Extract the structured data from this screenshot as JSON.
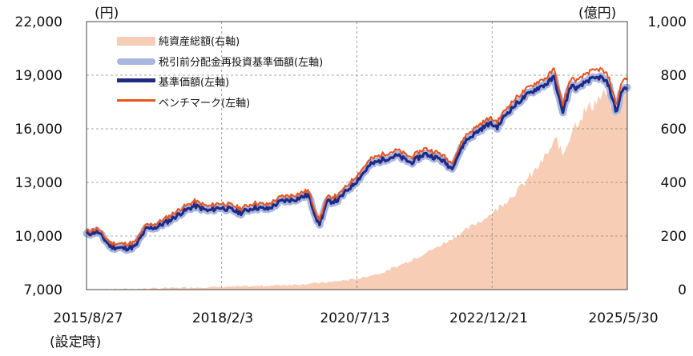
{
  "chart_data": {
    "type": "line",
    "units": {
      "left": "(円)",
      "right": "(億円)"
    },
    "y_left": {
      "ylim": [
        7000,
        22000
      ],
      "ticks": [
        "7,000",
        "10,000",
        "13,000",
        "16,000",
        "19,000",
        "22,000"
      ],
      "tick_values": [
        7000,
        10000,
        13000,
        16000,
        19000,
        22000
      ]
    },
    "y_right": {
      "ylim": [
        0,
        1000
      ],
      "ticks": [
        "0",
        "200",
        "400",
        "600",
        "800",
        "1,000"
      ],
      "tick_values": [
        0,
        200,
        400,
        600,
        800,
        1000
      ]
    },
    "x_ticks": [
      "2015/8/27",
      "2018/2/3",
      "2020/7/13",
      "2022/12/21",
      "2025/5/30"
    ],
    "x_tick_note": "(設定時)",
    "legend": [
      "純資産総額(右軸)",
      "税引前分配金再投資基準価額(左軸)",
      "基準価額(左軸)",
      "ベンチマーク(左軸)"
    ],
    "colors": {
      "assets": "#f7cdb5",
      "reinvested": "#a9b6df",
      "nav": "#1f2a85",
      "benchmark": "#e8541e",
      "grid": "#8a8a8a",
      "axis": "#444444"
    },
    "series": [
      {
        "name": "基準価額(左軸)",
        "axis": "left",
        "x": [
          0,
          0.02,
          0.045,
          0.07,
          0.09,
          0.11,
          0.13,
          0.155,
          0.175,
          0.2,
          0.225,
          0.245,
          0.265,
          0.285,
          0.31,
          0.335,
          0.36,
          0.385,
          0.41,
          0.43,
          0.445,
          0.465,
          0.48,
          0.5,
          0.525,
          0.55,
          0.575,
          0.6,
          0.625,
          0.655,
          0.675,
          0.7,
          0.725,
          0.745,
          0.76,
          0.775,
          0.795,
          0.815,
          0.835,
          0.85,
          0.865,
          0.88,
          0.895,
          0.91,
          0.925,
          0.94,
          0.95,
          0.965,
          0.98,
          0.99,
          1
        ],
        "values": [
          10100,
          10250,
          9400,
          9300,
          9400,
          10400,
          10500,
          10900,
          11300,
          11700,
          11400,
          11600,
          11500,
          11300,
          11600,
          11500,
          11950,
          12050,
          12300,
          10600,
          11900,
          12000,
          12500,
          13100,
          14000,
          14300,
          14500,
          14100,
          14600,
          14300,
          13800,
          15300,
          15900,
          16300,
          16100,
          16800,
          17400,
          17900,
          18300,
          18500,
          18900,
          16900,
          18400,
          18250,
          18700,
          18800,
          18900,
          18500,
          16900,
          18200,
          18250
        ]
      },
      {
        "name": "ベンチマーク(左軸)",
        "axis": "left",
        "x": [
          0,
          0.02,
          0.045,
          0.07,
          0.09,
          0.11,
          0.13,
          0.155,
          0.175,
          0.2,
          0.225,
          0.245,
          0.265,
          0.285,
          0.31,
          0.335,
          0.36,
          0.385,
          0.41,
          0.43,
          0.445,
          0.465,
          0.48,
          0.5,
          0.525,
          0.55,
          0.575,
          0.6,
          0.625,
          0.655,
          0.675,
          0.7,
          0.725,
          0.745,
          0.76,
          0.775,
          0.795,
          0.815,
          0.835,
          0.85,
          0.865,
          0.88,
          0.895,
          0.91,
          0.925,
          0.94,
          0.95,
          0.965,
          0.98,
          0.99,
          1
        ],
        "values": [
          10250,
          10400,
          9600,
          9550,
          9650,
          10600,
          10700,
          11150,
          11550,
          11950,
          11650,
          11850,
          11750,
          11550,
          11850,
          11750,
          12200,
          12300,
          12550,
          10850,
          12150,
          12250,
          12750,
          13400,
          14300,
          14600,
          14800,
          14400,
          14900,
          14600,
          14100,
          15600,
          16200,
          16600,
          16400,
          17100,
          17750,
          18250,
          18650,
          18850,
          19350,
          17300,
          18800,
          18700,
          19150,
          19250,
          19350,
          18950,
          17300,
          18700,
          18800
        ]
      },
      {
        "name": "税引前分配金再投資基準価額(左軸)",
        "axis": "left",
        "x": [
          0,
          0.02,
          0.045,
          0.07,
          0.09,
          0.11,
          0.13,
          0.155,
          0.175,
          0.2,
          0.225,
          0.245,
          0.265,
          0.285,
          0.31,
          0.335,
          0.36,
          0.385,
          0.41,
          0.43,
          0.445,
          0.465,
          0.48,
          0.5,
          0.525,
          0.55,
          0.575,
          0.6,
          0.625,
          0.655,
          0.675,
          0.7,
          0.725,
          0.745,
          0.76,
          0.775,
          0.795,
          0.815,
          0.835,
          0.85,
          0.865,
          0.88,
          0.895,
          0.91,
          0.925,
          0.94,
          0.95,
          0.965,
          0.98,
          0.99,
          1
        ],
        "values": [
          10100,
          10250,
          9400,
          9300,
          9400,
          10400,
          10500,
          10900,
          11300,
          11700,
          11400,
          11600,
          11500,
          11300,
          11600,
          11500,
          11950,
          12050,
          12300,
          10600,
          11900,
          12000,
          12500,
          13100,
          14000,
          14300,
          14500,
          14100,
          14600,
          14300,
          13800,
          15300,
          15900,
          16300,
          16100,
          16800,
          17400,
          17900,
          18300,
          18500,
          18900,
          16900,
          18400,
          18250,
          18700,
          18800,
          18900,
          18500,
          16900,
          18200,
          18250
        ]
      },
      {
        "name": "純資産総額(右軸)",
        "axis": "right",
        "type": "area",
        "x": [
          0,
          0.1,
          0.2,
          0.3,
          0.4,
          0.45,
          0.5,
          0.55,
          0.6,
          0.65,
          0.7,
          0.75,
          0.8,
          0.84,
          0.87,
          0.88,
          0.9,
          0.92,
          0.94,
          0.96,
          0.98,
          1
        ],
        "values": [
          0,
          3,
          8,
          12,
          20,
          28,
          40,
          65,
          110,
          160,
          220,
          285,
          375,
          470,
          560,
          500,
          610,
          660,
          700,
          730,
          660,
          760
        ]
      }
    ]
  }
}
